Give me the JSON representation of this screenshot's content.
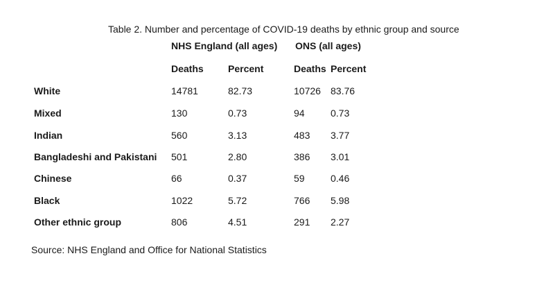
{
  "page": {
    "title": "Table 2. Number and percentage of COVID-19 deaths by ethnic group and source",
    "source_note": "Source: NHS England and Office for National Statistics"
  },
  "table": {
    "group_headers": [
      "NHS England (all ages)",
      "ONS (all ages)"
    ],
    "column_headers": [
      "Deaths",
      "Percent",
      "Deaths",
      "Percent"
    ],
    "rows": [
      {
        "label": "White",
        "nhs_deaths": "14781",
        "nhs_percent": "82.73",
        "ons_deaths": "10726",
        "ons_percent": "83.76"
      },
      {
        "label": "Mixed",
        "nhs_deaths": "130",
        "nhs_percent": "0.73",
        "ons_deaths": "94",
        "ons_percent": "0.73"
      },
      {
        "label": "Indian",
        "nhs_deaths": "560",
        "nhs_percent": "3.13",
        "ons_deaths": "483",
        "ons_percent": "3.77"
      },
      {
        "label": "Bangladeshi and Pakistani",
        "nhs_deaths": "501",
        "nhs_percent": "2.80",
        "ons_deaths": "386",
        "ons_percent": "3.01"
      },
      {
        "label": "Chinese",
        "nhs_deaths": "66",
        "nhs_percent": "0.37",
        "ons_deaths": "59",
        "ons_percent": "0.46"
      },
      {
        "label": "Black",
        "nhs_deaths": "1022",
        "nhs_percent": "5.72",
        "ons_deaths": "766",
        "ons_percent": "5.98"
      },
      {
        "label": "Other ethnic group",
        "nhs_deaths": "806",
        "nhs_percent": "4.51",
        "ons_deaths": "291",
        "ons_percent": "2.27"
      }
    ]
  },
  "colors": {
    "text": "#1a1a1a",
    "background": "#ffffff"
  }
}
